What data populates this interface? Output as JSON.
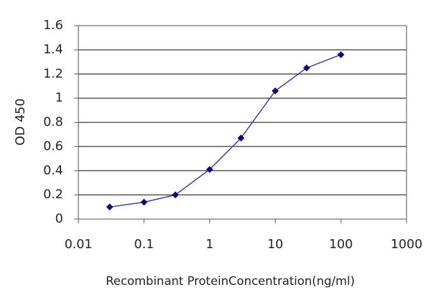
{
  "chart_data": {
    "type": "line",
    "x_label": "Recombinant ProteinConcentration(ng/ml)",
    "y_label": "OD 450",
    "x_scale": "log",
    "x": [
      0.03,
      0.1,
      0.3,
      1,
      3,
      10,
      30,
      100
    ],
    "series": [
      {
        "color": "#3a3aa0",
        "marker_color": "#0a0a80",
        "values": [
          0.1,
          0.14,
          0.2,
          0.41,
          0.67,
          1.06,
          1.25,
          1.36
        ]
      }
    ],
    "xlim": [
      0.01,
      1000
    ],
    "xticks": [
      0.01,
      0.1,
      1,
      10,
      100,
      1000
    ],
    "ylim": [
      0,
      1.6
    ],
    "yticks": [
      0,
      0.2,
      0.4,
      0.6,
      0.8,
      1,
      1.2,
      1.4,
      1.6
    ],
    "grid": true
  }
}
